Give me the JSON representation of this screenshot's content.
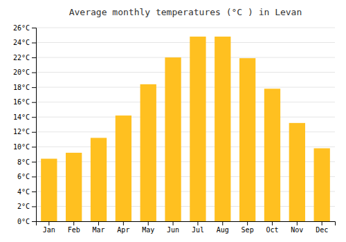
{
  "chart_data": {
    "type": "bar",
    "title": "Average monthly temperatures (°C ) in Levan",
    "categories": [
      "Jan",
      "Feb",
      "Mar",
      "Apr",
      "May",
      "Jun",
      "Jul",
      "Aug",
      "Sep",
      "Oct",
      "Nov",
      "Dec"
    ],
    "values": [
      8.4,
      9.2,
      11.2,
      14.2,
      18.4,
      22.0,
      24.8,
      24.8,
      21.9,
      17.8,
      13.2,
      9.8
    ],
    "color": "#FFC020",
    "ylim": [
      0,
      26
    ],
    "yticks": [
      {
        "value": 0,
        "label": "0°C"
      },
      {
        "value": 2,
        "label": "2°C"
      },
      {
        "value": 4,
        "label": "4°C"
      },
      {
        "value": 6,
        "label": "6°C"
      },
      {
        "value": 8,
        "label": "8°C"
      },
      {
        "value": 10,
        "label": "10°C"
      },
      {
        "value": 12,
        "label": "12°C"
      },
      {
        "value": 14,
        "label": "14°C"
      },
      {
        "value": 16,
        "label": "16°C"
      },
      {
        "value": 18,
        "label": "18°C"
      },
      {
        "value": 20,
        "label": "20°C"
      },
      {
        "value": 22,
        "label": "22°C"
      },
      {
        "value": 24,
        "label": "24°C"
      },
      {
        "value": 26,
        "label": "26°C"
      }
    ],
    "grid": true
  }
}
